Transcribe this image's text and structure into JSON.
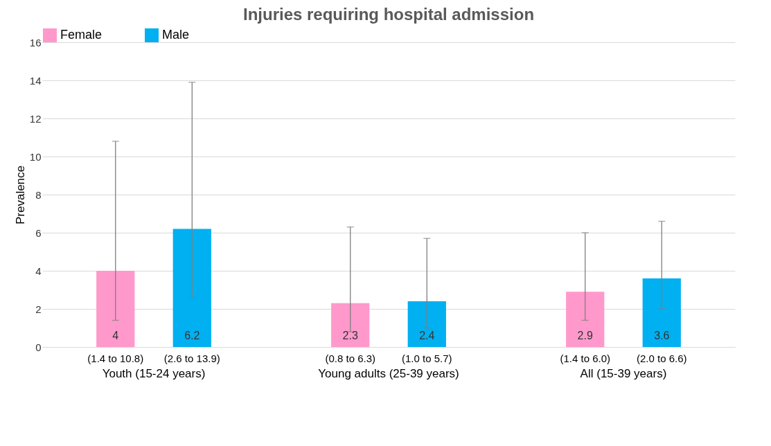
{
  "chart_data": {
    "type": "bar",
    "title": "Injuries requiring hospital admission",
    "ylabel": "Prevalence",
    "categories": [
      "Youth (15-24 years)",
      "Young adults (25-39 years)",
      "All (15-39 years)"
    ],
    "series": [
      {
        "name": "Female",
        "color": "#ff99cc",
        "values": [
          4,
          2.3,
          2.9
        ],
        "errors": [
          [
            1.4,
            10.8
          ],
          [
            0.8,
            6.3
          ],
          [
            1.4,
            6.0
          ]
        ]
      },
      {
        "name": "Male",
        "color": "#00b0f0",
        "values": [
          6.2,
          2.4,
          3.6
        ],
        "errors": [
          [
            2.6,
            13.9
          ],
          [
            1.0,
            5.7
          ],
          [
            2.0,
            6.6
          ]
        ]
      }
    ],
    "annotations": [
      "(1.4 to 10.8)",
      "(2.6 to 13.9)",
      "(0.8 to 6.3)",
      "(1.0 to 5.7)",
      "(1.4 to 6.0)",
      "(2.0 to 6.6)"
    ],
    "data_labels": true,
    "ylim": [
      0,
      16
    ],
    "yticks": [
      0,
      2,
      4,
      6,
      8,
      10,
      12,
      14,
      16
    ],
    "grid": "y",
    "legend": "top"
  }
}
